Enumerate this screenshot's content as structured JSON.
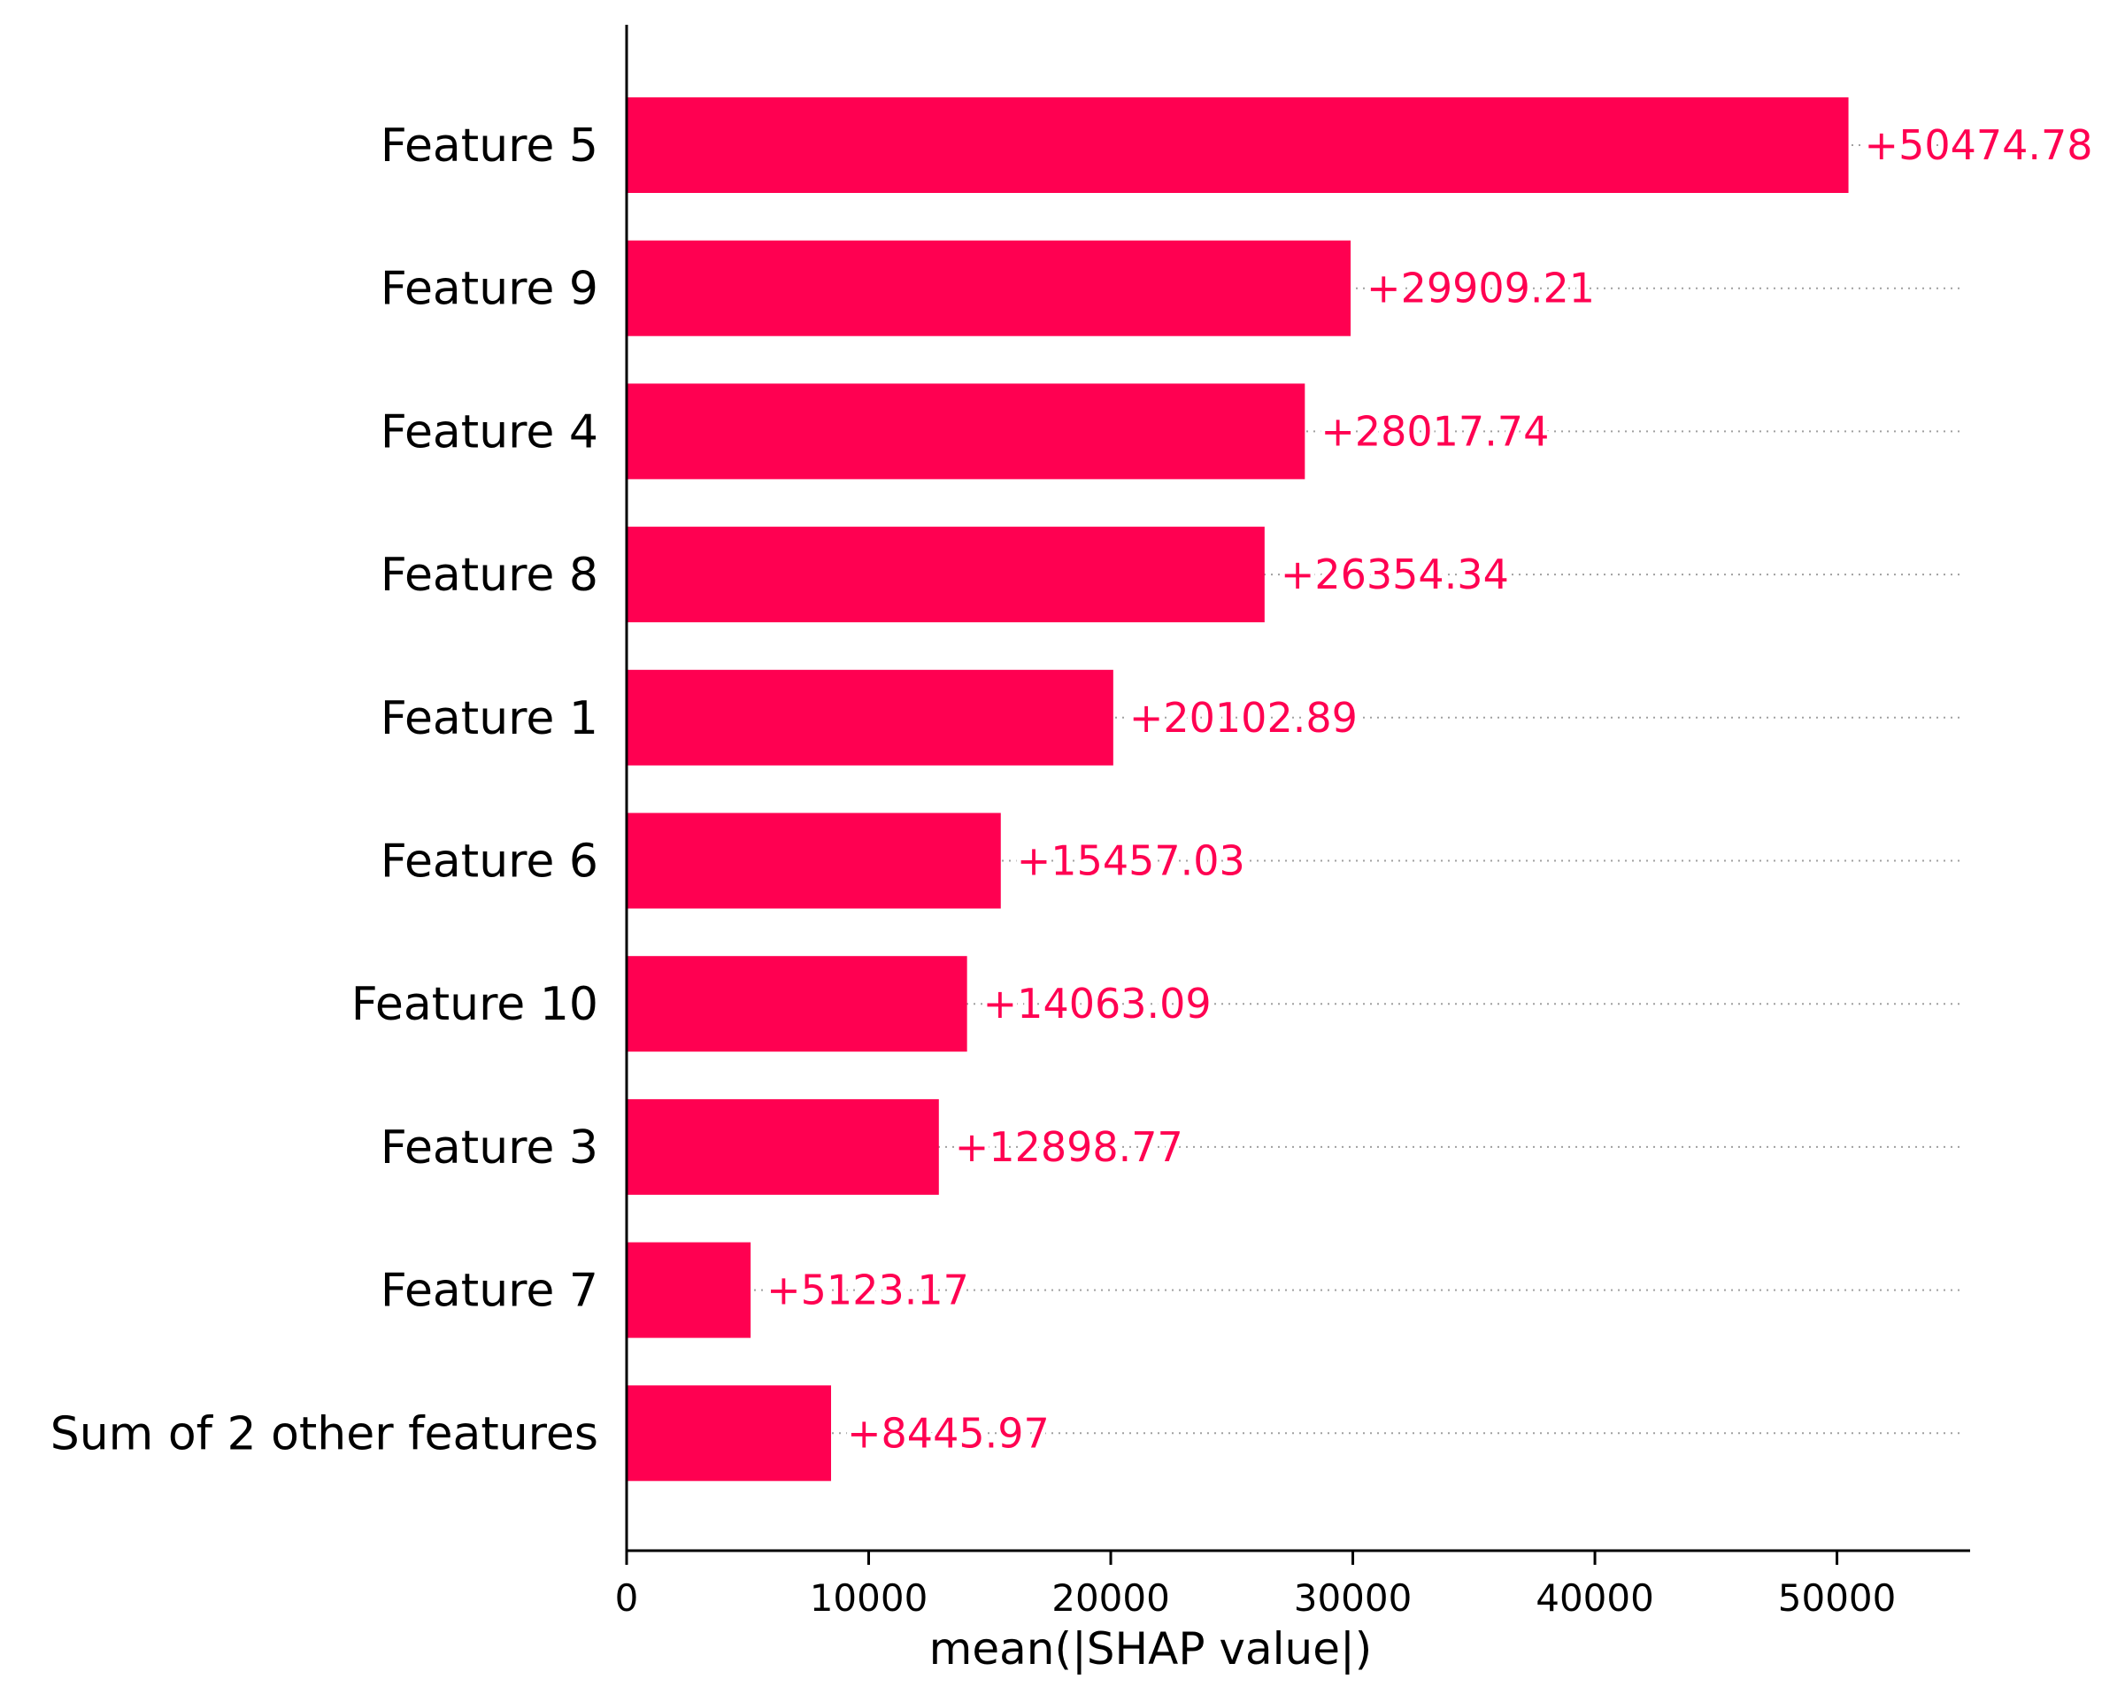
{
  "chart_data": {
    "type": "bar",
    "orientation": "horizontal",
    "categories": [
      "Feature 5",
      "Feature 9",
      "Feature 4",
      "Feature 8",
      "Feature 1",
      "Feature 6",
      "Feature 10",
      "Feature 3",
      "Feature 7",
      "Sum of 2 other features"
    ],
    "values": [
      50474.78,
      29909.21,
      28017.74,
      26354.34,
      20102.89,
      15457.03,
      14063.09,
      12898.77,
      5123.17,
      8445.97
    ],
    "value_labels": [
      "+50474.78",
      "+29909.21",
      "+28017.74",
      "+26354.34",
      "+20102.89",
      "+15457.03",
      "+14063.09",
      "+12898.77",
      "+5123.17",
      "+8445.97"
    ],
    "xlabel": "mean(|SHAP value|)",
    "ylabel": "",
    "title": "",
    "xlim": [
      0,
      55500
    ],
    "xticks": [
      0,
      10000,
      20000,
      30000,
      40000,
      50000
    ],
    "xtick_labels": [
      "0",
      "10000",
      "20000",
      "30000",
      "40000",
      "50000"
    ],
    "grid": false,
    "guide_lines": "dotted",
    "bar_color": "#ff0051",
    "label_color": "#ff0051",
    "axis_color": "#000000",
    "guide_color": "#a0a0a0"
  }
}
